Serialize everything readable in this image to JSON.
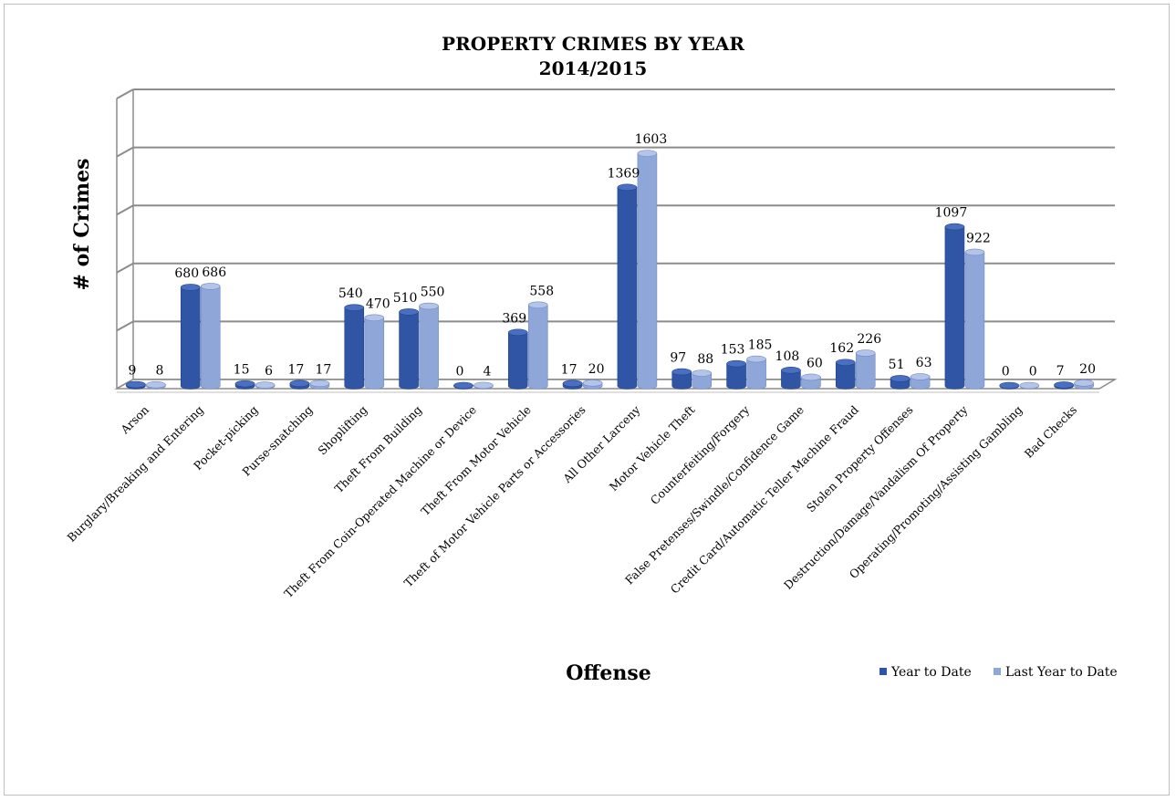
{
  "chart_data": {
    "type": "bar",
    "title": [
      "PROPERTY CRIMES BY YEAR",
      "2014/2015"
    ],
    "xlabel": "Offense",
    "ylabel": "# of Crimes",
    "ylim": [
      0,
      2000
    ],
    "grid": true,
    "legend_position": "bottom-right",
    "categories": [
      "Arson",
      "Burglary/Breaking and Entering",
      "Pocket-picking",
      "Purse-snatching",
      "Shoplifting",
      "Theft From Building",
      "Theft From Coin-Operated Machine or Device",
      "Theft From Motor Vehicle",
      "Theft of Motor Vehicle Parts or Accessories",
      "All Other Larceny",
      "Motor Vehicle Theft",
      "Counterfeiting/Forgery",
      "False Pretenses/Swindle/Confidence Game",
      "Credit Card/Automatic Teller Machine Fraud",
      "Stolen Property Offenses",
      "Destruction/Damage/Vandalism Of Property",
      "Operating/Promoting/Assisting Gambling",
      "Bad Checks"
    ],
    "series": [
      {
        "name": "Year to Date",
        "color": "#2f55a4",
        "values": [
          9,
          680,
          15,
          17,
          540,
          510,
          0,
          369,
          17,
          1369,
          97,
          153,
          108,
          162,
          51,
          1097,
          0,
          7
        ]
      },
      {
        "name": "Last Year to Date",
        "color": "#8ea6d8",
        "values": [
          8,
          686,
          6,
          17,
          470,
          550,
          4,
          558,
          20,
          1603,
          88,
          185,
          60,
          226,
          63,
          922,
          0,
          20
        ]
      }
    ]
  }
}
